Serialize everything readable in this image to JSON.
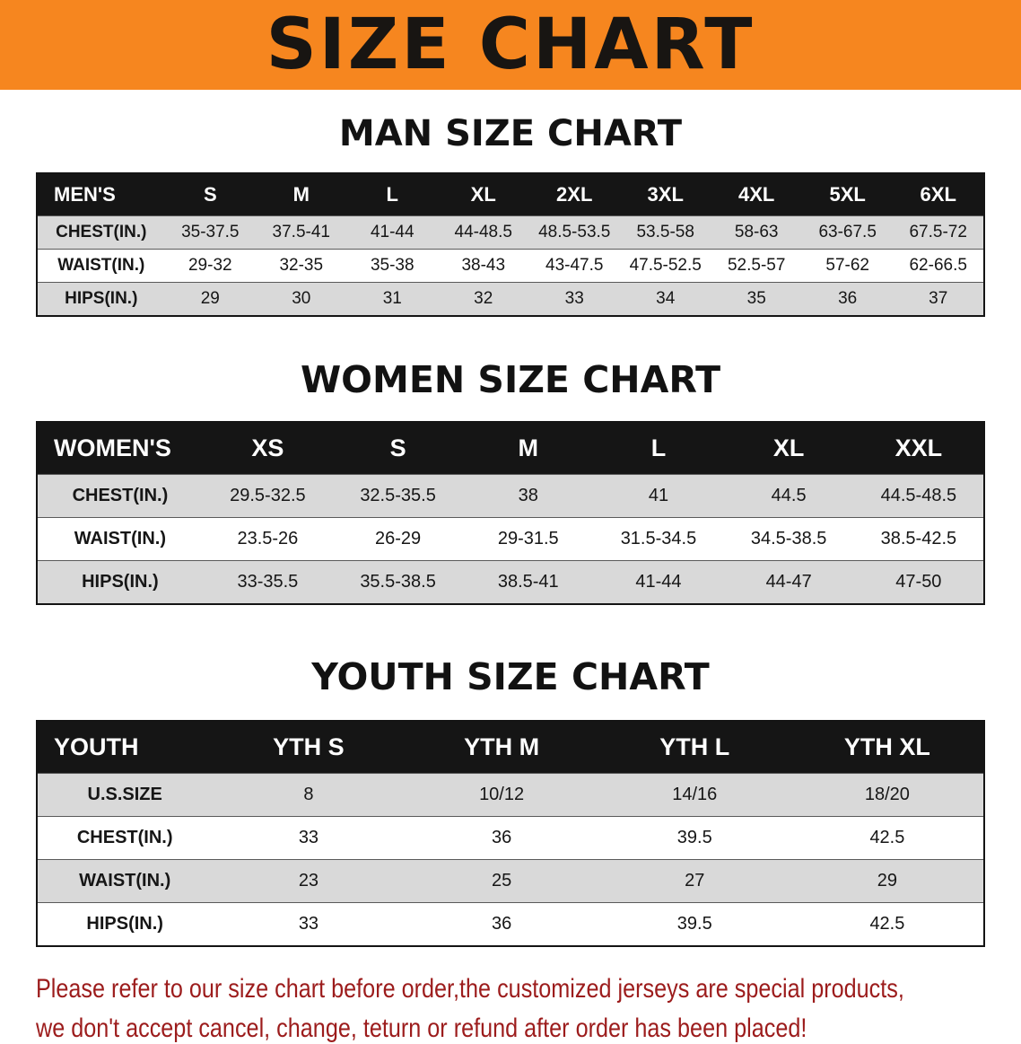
{
  "banner": {
    "title": "SIZE CHART"
  },
  "colors": {
    "banner_bg": "#f6861f",
    "table_header_bg": "#151515",
    "row_alt_gray": "#d9d9d9",
    "note_red": "#9c1c1c"
  },
  "man_section": {
    "title": "MAN SIZE CHART",
    "table": {
      "header": [
        "MEN'S",
        "S",
        "M",
        "L",
        "XL",
        "2XL",
        "3XL",
        "4XL",
        "5XL",
        "6XL"
      ],
      "rows": [
        {
          "label": "CHEST(IN.)",
          "values": [
            "35-37.5",
            "37.5-41",
            "41-44",
            "44-48.5",
            "48.5-53.5",
            "53.5-58",
            "58-63",
            "63-67.5",
            "67.5-72"
          ]
        },
        {
          "label": "WAIST(IN.)",
          "values": [
            "29-32",
            "32-35",
            "35-38",
            "38-43",
            "43-47.5",
            "47.5-52.5",
            "52.5-57",
            "57-62",
            "62-66.5"
          ]
        },
        {
          "label": "HIPS(IN.)",
          "values": [
            "29",
            "30",
            "31",
            "32",
            "33",
            "34",
            "35",
            "36",
            "37"
          ]
        }
      ]
    }
  },
  "women_section": {
    "title": "WOMEN SIZE CHART",
    "table": {
      "header": [
        "WOMEN'S",
        "XS",
        "S",
        "M",
        "L",
        "XL",
        "XXL"
      ],
      "rows": [
        {
          "label": "CHEST(IN.)",
          "values": [
            "29.5-32.5",
            "32.5-35.5",
            "38",
            "41",
            "44.5",
            "44.5-48.5"
          ]
        },
        {
          "label": "WAIST(IN.)",
          "values": [
            "23.5-26",
            "26-29",
            "29-31.5",
            "31.5-34.5",
            "34.5-38.5",
            "38.5-42.5"
          ]
        },
        {
          "label": "HIPS(IN.)",
          "values": [
            "33-35.5",
            "35.5-38.5",
            "38.5-41",
            "41-44",
            "44-47",
            "47-50"
          ]
        }
      ]
    }
  },
  "youth_section": {
    "title": "YOUTH SIZE CHART",
    "table": {
      "header": [
        "YOUTH",
        "YTH S",
        "YTH M",
        "YTH L",
        "YTH XL"
      ],
      "rows": [
        {
          "label": "U.S.SIZE",
          "values": [
            "8",
            "10/12",
            "14/16",
            "18/20"
          ]
        },
        {
          "label": "CHEST(IN.)",
          "values": [
            "33",
            "36",
            "39.5",
            "42.5"
          ]
        },
        {
          "label": "WAIST(IN.)",
          "values": [
            "23",
            "25",
            "27",
            "29"
          ]
        },
        {
          "label": "HIPS(IN.)",
          "values": [
            "33",
            "36",
            "39.5",
            "42.5"
          ]
        }
      ]
    }
  },
  "footer_note": {
    "line1": "Please refer to our size chart before order,the customized jerseys are special products,",
    "line2": "we don't accept cancel, change, teturn or refund after order has been placed!"
  }
}
